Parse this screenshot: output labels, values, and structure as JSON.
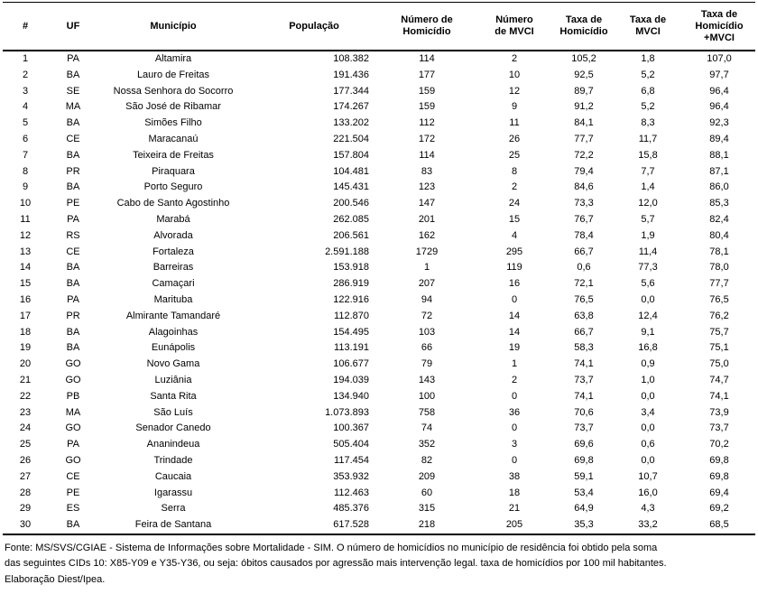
{
  "table": {
    "columns": [
      {
        "key": "rank",
        "label": "#"
      },
      {
        "key": "uf",
        "label": "UF"
      },
      {
        "key": "municipio",
        "label": "Município"
      },
      {
        "key": "populacao",
        "label": "População"
      },
      {
        "key": "num_homicidio",
        "label": "Número de\nHomicídio"
      },
      {
        "key": "num_mvci",
        "label": "Número\nde MVCI"
      },
      {
        "key": "taxa_homicidio",
        "label": "Taxa de\nHomicídio"
      },
      {
        "key": "taxa_mvci",
        "label": "Taxa de\nMVCI"
      },
      {
        "key": "taxa_total",
        "label": "Taxa de\nHomicídio\n+MVCI"
      }
    ],
    "rows": [
      [
        "1",
        "PA",
        "Altamira",
        "108.382",
        "114",
        "2",
        "105,2",
        "1,8",
        "107,0"
      ],
      [
        "2",
        "BA",
        "Lauro de Freitas",
        "191.436",
        "177",
        "10",
        "92,5",
        "5,2",
        "97,7"
      ],
      [
        "3",
        "SE",
        "Nossa Senhora do Socorro",
        "177.344",
        "159",
        "12",
        "89,7",
        "6,8",
        "96,4"
      ],
      [
        "4",
        "MA",
        "São José de Ribamar",
        "174.267",
        "159",
        "9",
        "91,2",
        "5,2",
        "96,4"
      ],
      [
        "5",
        "BA",
        "Simões Filho",
        "133.202",
        "112",
        "11",
        "84,1",
        "8,3",
        "92,3"
      ],
      [
        "6",
        "CE",
        "Maracanaú",
        "221.504",
        "172",
        "26",
        "77,7",
        "11,7",
        "89,4"
      ],
      [
        "7",
        "BA",
        "Teixeira de Freitas",
        "157.804",
        "114",
        "25",
        "72,2",
        "15,8",
        "88,1"
      ],
      [
        "8",
        "PR",
        "Piraquara",
        "104.481",
        "83",
        "8",
        "79,4",
        "7,7",
        "87,1"
      ],
      [
        "9",
        "BA",
        "Porto Seguro",
        "145.431",
        "123",
        "2",
        "84,6",
        "1,4",
        "86,0"
      ],
      [
        "10",
        "PE",
        "Cabo de Santo Agostinho",
        "200.546",
        "147",
        "24",
        "73,3",
        "12,0",
        "85,3"
      ],
      [
        "11",
        "PA",
        "Marabá",
        "262.085",
        "201",
        "15",
        "76,7",
        "5,7",
        "82,4"
      ],
      [
        "12",
        "RS",
        "Alvorada",
        "206.561",
        "162",
        "4",
        "78,4",
        "1,9",
        "80,4"
      ],
      [
        "13",
        "CE",
        "Fortaleza",
        "2.591.188",
        "1729",
        "295",
        "66,7",
        "11,4",
        "78,1"
      ],
      [
        "14",
        "BA",
        "Barreiras",
        "153.918",
        "1",
        "119",
        "0,6",
        "77,3",
        "78,0"
      ],
      [
        "15",
        "BA",
        "Camaçari",
        "286.919",
        "207",
        "16",
        "72,1",
        "5,6",
        "77,7"
      ],
      [
        "16",
        "PA",
        "Marituba",
        "122.916",
        "94",
        "0",
        "76,5",
        "0,0",
        "76,5"
      ],
      [
        "17",
        "PR",
        "Almirante Tamandaré",
        "112.870",
        "72",
        "14",
        "63,8",
        "12,4",
        "76,2"
      ],
      [
        "18",
        "BA",
        "Alagoinhas",
        "154.495",
        "103",
        "14",
        "66,7",
        "9,1",
        "75,7"
      ],
      [
        "19",
        "BA",
        "Eunápolis",
        "113.191",
        "66",
        "19",
        "58,3",
        "16,8",
        "75,1"
      ],
      [
        "20",
        "GO",
        "Novo Gama",
        "106.677",
        "79",
        "1",
        "74,1",
        "0,9",
        "75,0"
      ],
      [
        "21",
        "GO",
        "Luziânia",
        "194.039",
        "143",
        "2",
        "73,7",
        "1,0",
        "74,7"
      ],
      [
        "22",
        "PB",
        "Santa Rita",
        "134.940",
        "100",
        "0",
        "74,1",
        "0,0",
        "74,1"
      ],
      [
        "23",
        "MA",
        "São Luís",
        "1.073.893",
        "758",
        "36",
        "70,6",
        "3,4",
        "73,9"
      ],
      [
        "24",
        "GO",
        "Senador Canedo",
        "100.367",
        "74",
        "0",
        "73,7",
        "0,0",
        "73,7"
      ],
      [
        "25",
        "PA",
        "Ananindeua",
        "505.404",
        "352",
        "3",
        "69,6",
        "0,6",
        "70,2"
      ],
      [
        "26",
        "GO",
        "Trindade",
        "117.454",
        "82",
        "0",
        "69,8",
        "0,0",
        "69,8"
      ],
      [
        "27",
        "CE",
        "Caucaia",
        "353.932",
        "209",
        "38",
        "59,1",
        "10,7",
        "69,8"
      ],
      [
        "28",
        "PE",
        "Igarassu",
        "112.463",
        "60",
        "18",
        "53,4",
        "16,0",
        "69,4"
      ],
      [
        "29",
        "ES",
        "Serra",
        "485.376",
        "315",
        "21",
        "64,9",
        "4,3",
        "69,2"
      ],
      [
        "30",
        "BA",
        "Feira de Santana",
        "617.528",
        "218",
        "205",
        "35,3",
        "33,2",
        "68,5"
      ]
    ]
  },
  "footer": {
    "lines": [
      "Fonte: MS/SVS/CGIAE - Sistema de Informações sobre Mortalidade - SIM. O número de homicídios no município de residência foi obtido pela soma",
      "das seguintes CIDs 10: X85-Y09 e Y35-Y36, ou seja: óbitos causados por agressão mais intervenção legal. taxa de homicídios por 100 mil habitantes.",
      "Elaboração Diest/Ipea."
    ]
  }
}
